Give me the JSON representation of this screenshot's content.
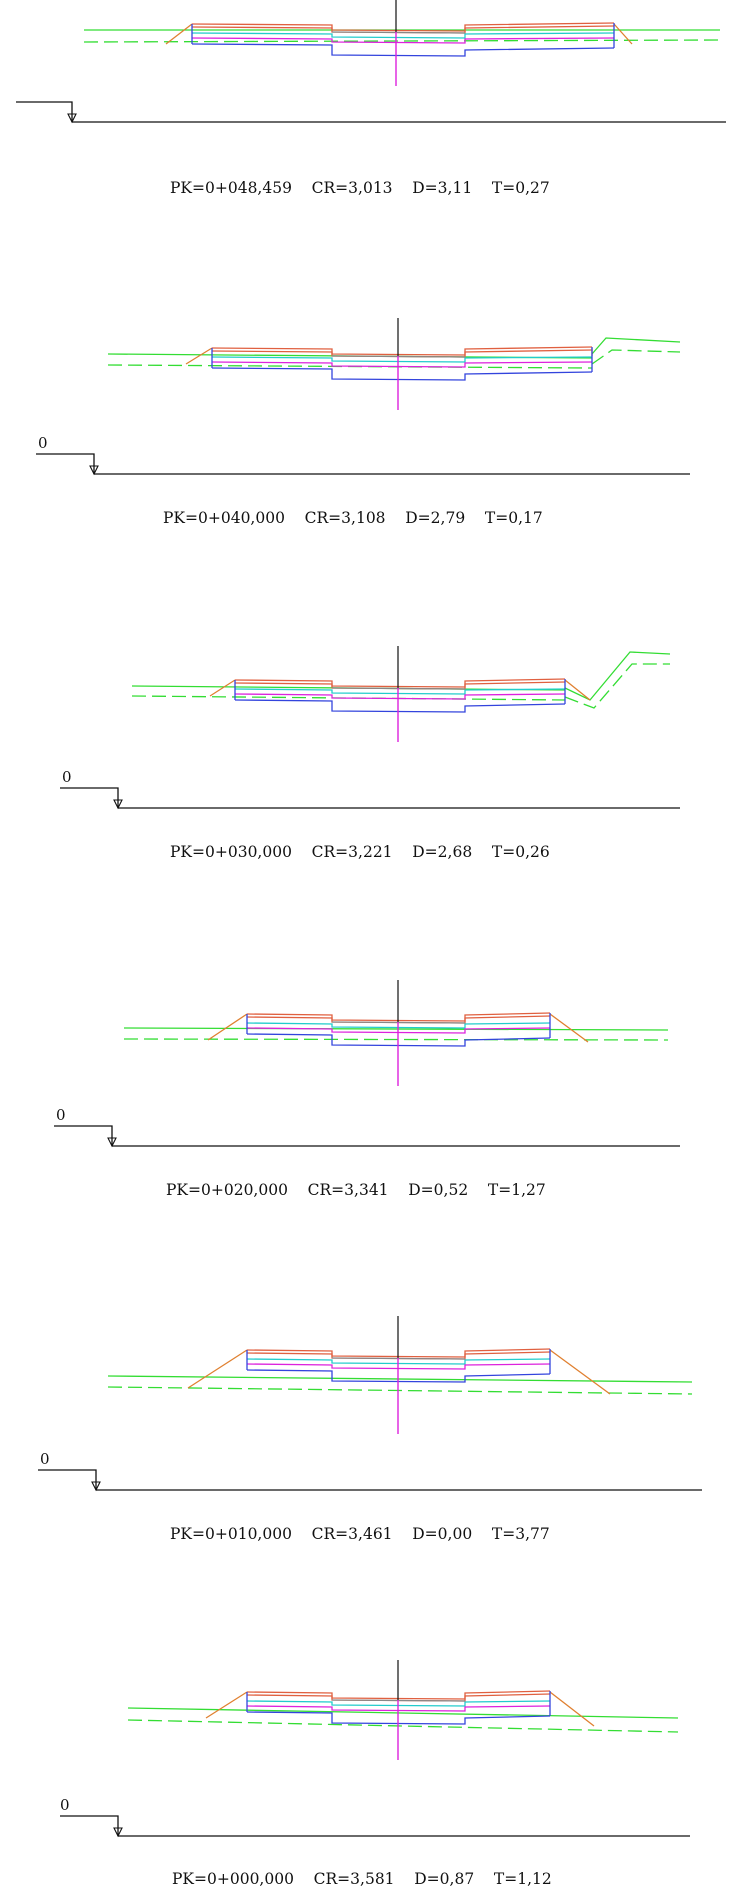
{
  "drawing": {
    "colors": {
      "terrain": "#33dd33",
      "surface": "#e06040",
      "slope": "#e08030",
      "base": "#3344dd",
      "layer_cyan": "#22cccc",
      "layer_grey": "#888888",
      "axis_black": "#111111",
      "axis_magenta": "#dd22dd"
    },
    "sections": [
      {
        "caption": "PK=0+048,459    CR=3,013    D=3,11    T=0,27",
        "zero": "",
        "pk": "0+048,459",
        "cr": "3,013",
        "d": "3,11",
        "t": "0,27"
      },
      {
        "caption": "PK=0+040,000    CR=3,108    D=2,79    T=0,17",
        "zero": "0",
        "pk": "0+040,000",
        "cr": "3,108",
        "d": "2,79",
        "t": "0,17"
      },
      {
        "caption": "PK=0+030,000    CR=3,221    D=2,68    T=0,26",
        "zero": "0",
        "pk": "0+030,000",
        "cr": "3,221",
        "d": "2,68",
        "t": "0,26"
      },
      {
        "caption": "PK=0+020,000    CR=3,341    D=0,52    T=1,27",
        "zero": "0",
        "pk": "0+020,000",
        "cr": "3,341",
        "d": "0,52",
        "t": "1,27"
      },
      {
        "caption": "PK=0+010,000    CR=3,461    D=0,00    T=3,77",
        "zero": "0",
        "pk": "0+010,000",
        "cr": "3,461",
        "d": "0,00",
        "t": "3,77"
      },
      {
        "caption": "PK=0+000,000    CR=3,581    D=0,87    T=1,12",
        "zero": "0",
        "pk": "0+000,000",
        "cr": "3,581",
        "d": "0,87",
        "t": "1,12"
      }
    ]
  }
}
